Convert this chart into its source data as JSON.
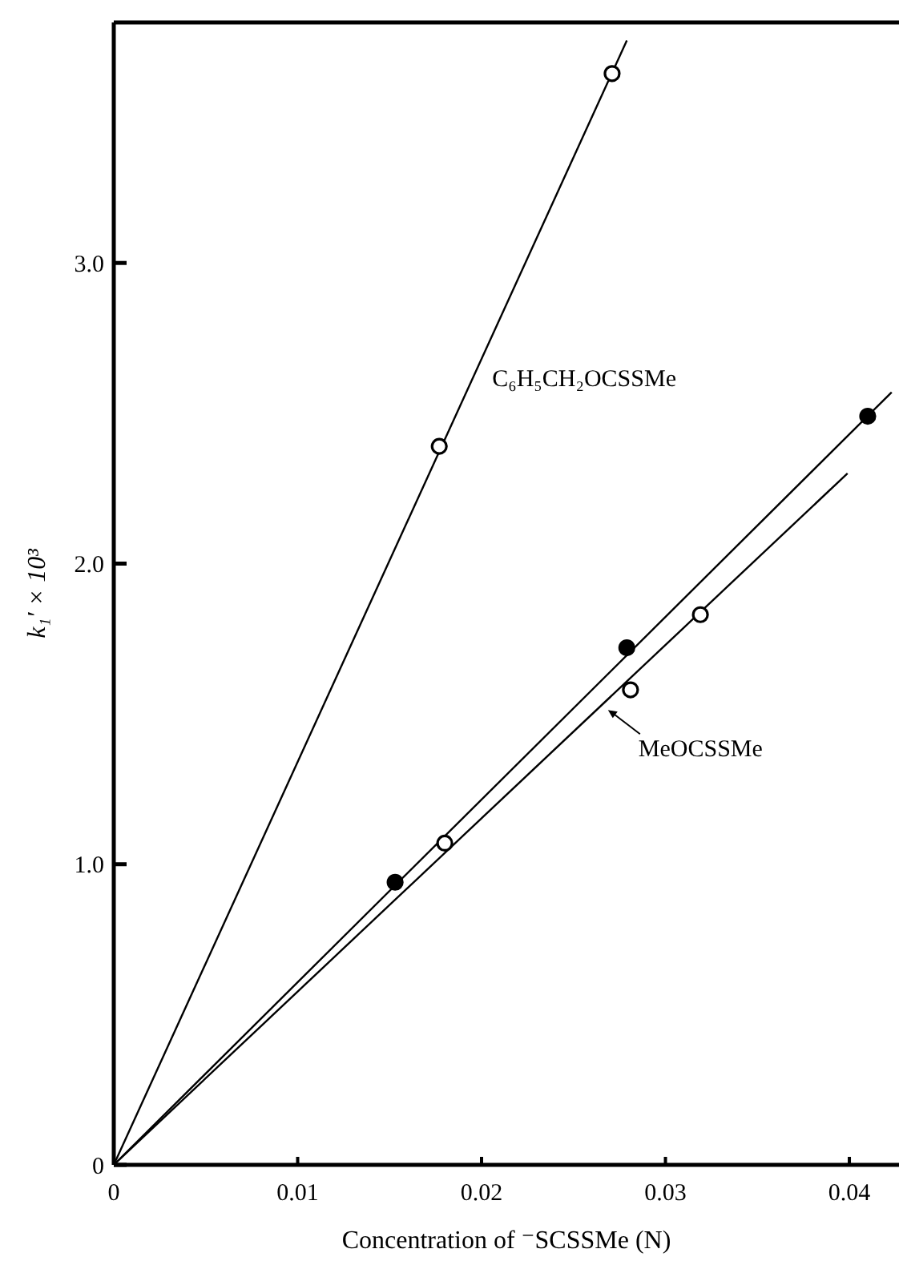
{
  "chart_data": {
    "type": "scatter",
    "xlabel": "Concentration of ⁻SCSSMe (N)",
    "ylabel": "k₁′ × 10³",
    "xlim": [
      0,
      0.0427
    ],
    "ylim": [
      0,
      3.8
    ],
    "xticks": [
      0,
      0.01,
      0.02,
      0.03,
      0.04
    ],
    "yticks": [
      0,
      {
        "value": 1,
        "label": "1.0"
      },
      {
        "value": 2,
        "label": "2.0"
      },
      {
        "value": 3,
        "label": "3.0"
      }
    ],
    "grid": false,
    "series": [
      {
        "type": "scatter",
        "marker": "circle",
        "color": "#ffffff",
        "x": [
          0.0177,
          0.0271
        ],
        "values": [
          2.39,
          3.63
        ]
      },
      {
        "type": "scatter",
        "marker": "circle",
        "color": "#ffffff",
        "x": [
          0.018,
          0.0281,
          0.0319
        ],
        "values": [
          1.07,
          1.58,
          1.83
        ]
      },
      {
        "type": "scatter",
        "marker": "circle",
        "color": "#000000",
        "x": [
          0.0153,
          0.0279,
          0.041
        ],
        "values": [
          0.94,
          1.72,
          2.49
        ]
      },
      {
        "type": "line",
        "name": "C₆H₅CH₂OCSSMe",
        "color": "#000000",
        "line_style": "solid",
        "x": [
          0,
          0.0279
        ],
        "values": [
          0,
          3.74
        ]
      },
      {
        "type": "line",
        "color": "#000000",
        "line_style": "solid",
        "x": [
          0,
          0.0423
        ],
        "values": [
          0,
          2.57
        ]
      },
      {
        "type": "line",
        "name": "MeOCSSMe",
        "color": "#000000",
        "line_style": "solid",
        "x": [
          0,
          0.0399
        ],
        "values": [
          0,
          2.3
        ]
      }
    ]
  }
}
